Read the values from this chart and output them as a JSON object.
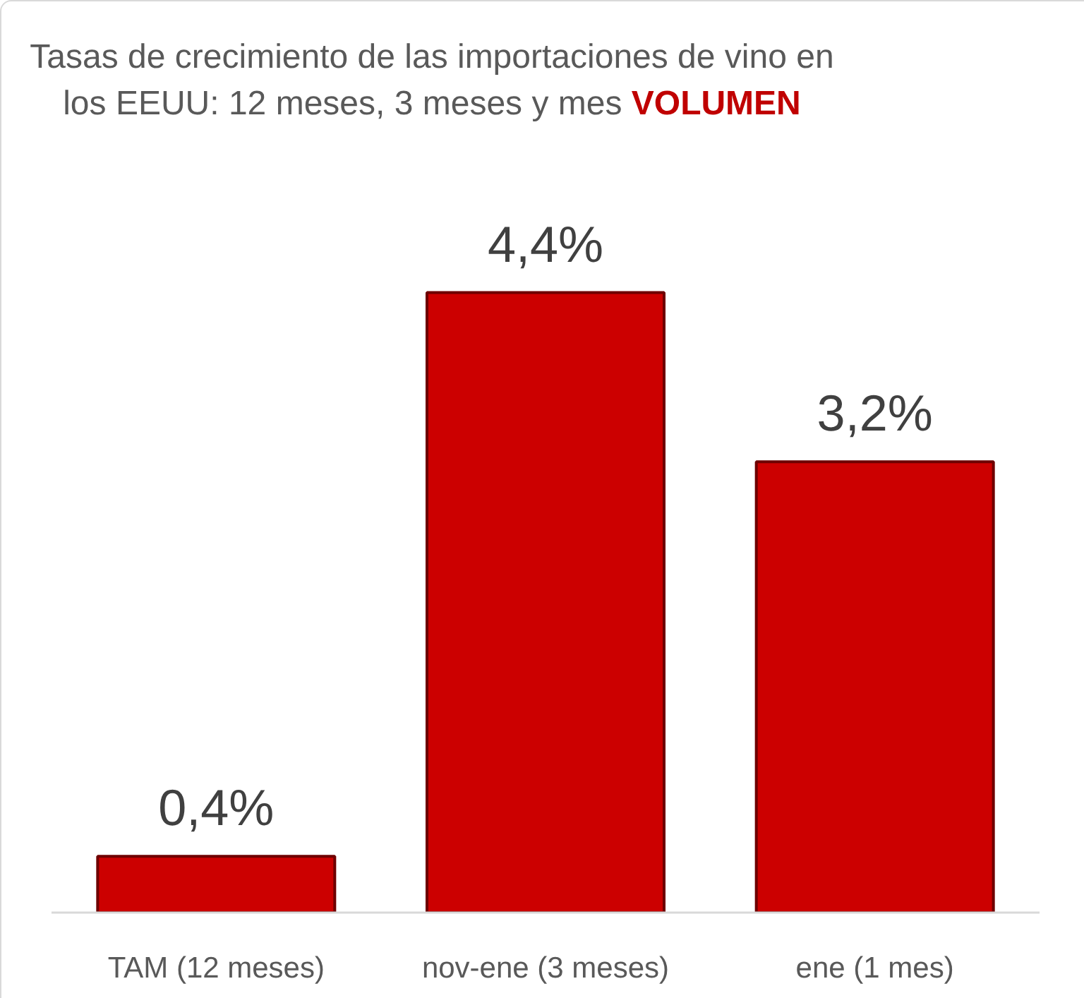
{
  "chart_data": {
    "type": "bar",
    "title": "Tasas de crecimiento de las importaciones de vino en los EEUU: 12 meses, 3 meses y mes VOLUMEN",
    "categories": [
      "TAM (12 meses)",
      "nov-ene (3 meses)",
      "ene (1 mes)"
    ],
    "values": [
      0.4,
      4.4,
      3.2
    ],
    "value_labels": [
      "0,4%",
      "4,4%",
      "3,2%"
    ],
    "color": "#cc0000"
  }
}
